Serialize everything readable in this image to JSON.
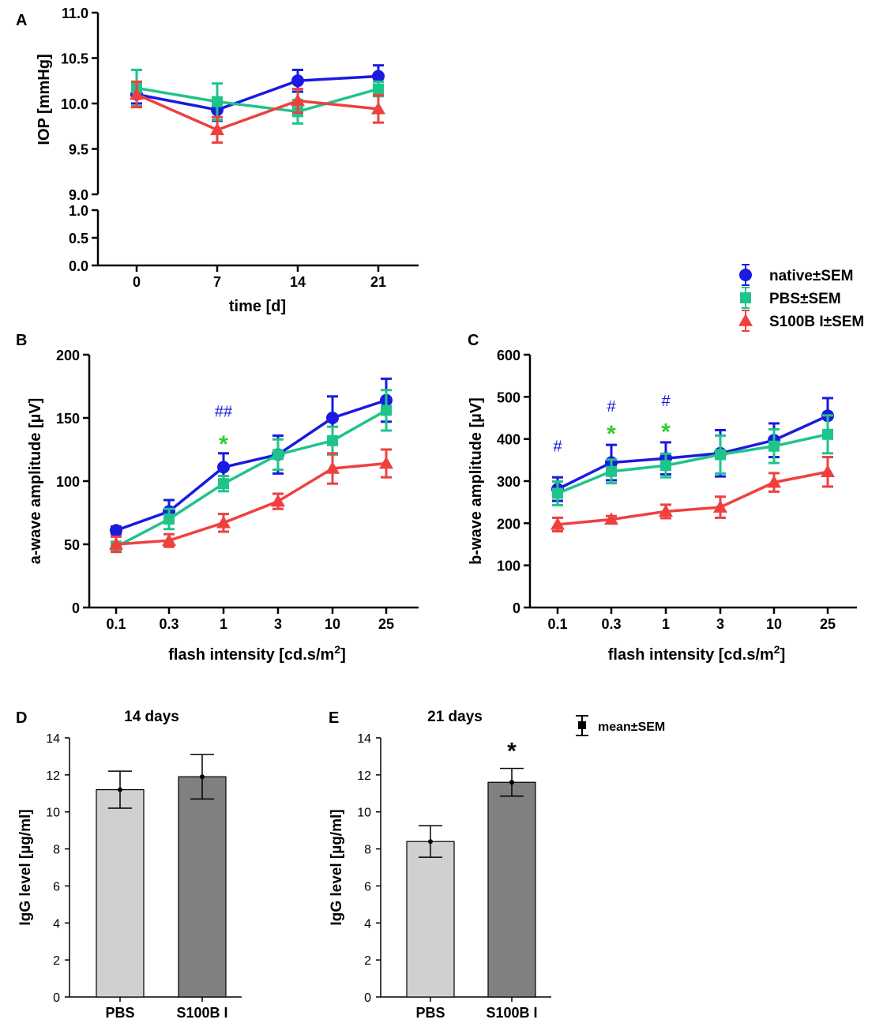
{
  "colors": {
    "native": "#1a1ae0",
    "pbs": "#1fc48a",
    "s100b": "#ef4040",
    "bar_pbs": "#d0d0d0",
    "bar_s100b": "#808080",
    "ink": "#000000",
    "star_green": "#33cc33",
    "hash_blue": "#1a1ae0"
  },
  "legend": {
    "native": "native±SEM",
    "pbs": "PBS±SEM",
    "s100b": "S100B I±SEM",
    "mean": "mean±SEM"
  },
  "chart_data": [
    {
      "panel": "A",
      "type": "line",
      "xlabel": "time [d]",
      "ylabel": "IOP [mmHg]",
      "categories": [
        "0",
        "7",
        "14",
        "21"
      ],
      "x": [
        0,
        7,
        14,
        21
      ],
      "ylim_upper": [
        9.0,
        11.0
      ],
      "yticks_upper": [
        "9.0",
        "9.5",
        "10.0",
        "10.5",
        "11.0"
      ],
      "ylim_lower": [
        0.0,
        1.0
      ],
      "yticks_lower": [
        "0.0",
        "0.5",
        "1.0"
      ],
      "series": [
        {
          "key": "native",
          "name": "native±SEM",
          "marker": "circle",
          "values": [
            10.1,
            9.93,
            10.25,
            10.3
          ],
          "err": [
            0.1,
            0.12,
            0.12,
            0.12
          ]
        },
        {
          "key": "pbs",
          "name": "PBS±SEM",
          "marker": "square",
          "values": [
            10.17,
            10.02,
            9.91,
            10.16
          ],
          "err": [
            0.2,
            0.2,
            0.13,
            0.08
          ]
        },
        {
          "key": "s100b",
          "name": "S100B I±SEM",
          "marker": "triangle",
          "values": [
            10.1,
            9.71,
            10.03,
            9.94
          ],
          "err": [
            0.14,
            0.14,
            0.13,
            0.15
          ]
        }
      ]
    },
    {
      "panel": "B",
      "type": "line",
      "xlabel": "flash intensity [cd.s/m",
      "xlabel_sup": "2",
      "xlabel_end": "]",
      "ylabel": "a-wave amplitude [µV]",
      "categories": [
        "0.1",
        "0.3",
        "1",
        "3",
        "10",
        "25"
      ],
      "ylim": [
        0,
        200
      ],
      "yticks": [
        "0",
        "50",
        "100",
        "150",
        "200"
      ],
      "series": [
        {
          "key": "native",
          "name": "native±SEM",
          "marker": "circle",
          "values": [
            61,
            76,
            111,
            121,
            150,
            164
          ],
          "err": [
            3,
            9,
            11,
            15,
            17,
            17
          ]
        },
        {
          "key": "pbs",
          "name": "PBS±SEM",
          "marker": "square",
          "values": [
            48,
            70,
            98,
            121,
            132,
            156
          ],
          "err": [
            4,
            8,
            6,
            12,
            11,
            16
          ]
        },
        {
          "key": "s100b",
          "name": "S100B I±SEM",
          "marker": "triangle",
          "values": [
            50,
            53,
            67,
            84,
            110,
            114
          ],
          "err": [
            6,
            5,
            7,
            6,
            12,
            11
          ]
        }
      ],
      "annotations": [
        {
          "cat": 2,
          "text": "##",
          "color": "hash_blue",
          "y": 151
        },
        {
          "cat": 2,
          "text": "*",
          "color": "star_green",
          "y": 132
        }
      ]
    },
    {
      "panel": "C",
      "type": "line",
      "xlabel": "flash intensity [cd.s/m",
      "xlabel_sup": "2",
      "xlabel_end": "]",
      "ylabel": "b-wave amplitude [µV]",
      "categories": [
        "0.1",
        "0.3",
        "1",
        "3",
        "10",
        "25"
      ],
      "ylim": [
        0,
        600
      ],
      "yticks": [
        "0",
        "100",
        "200",
        "300",
        "400",
        "500",
        "600"
      ],
      "series": [
        {
          "key": "native",
          "name": "native±SEM",
          "marker": "circle",
          "values": [
            281,
            344,
            354,
            366,
            397,
            455
          ],
          "err": [
            28,
            42,
            38,
            55,
            40,
            42
          ]
        },
        {
          "key": "pbs",
          "name": "PBS±SEM",
          "marker": "square",
          "values": [
            271,
            323,
            337,
            363,
            383,
            411
          ],
          "err": [
            28,
            28,
            28,
            45,
            40,
            45
          ]
        },
        {
          "key": "s100b",
          "name": "S100B I±SEM",
          "marker": "triangle",
          "values": [
            197,
            209,
            228,
            238,
            297,
            322
          ],
          "err": [
            16,
            8,
            16,
            25,
            22,
            35
          ]
        }
      ],
      "annotations": [
        {
          "cat": 0,
          "text": "#",
          "color": "hash_blue",
          "y": 370
        },
        {
          "cat": 1,
          "text": "#",
          "color": "hash_blue",
          "y": 465
        },
        {
          "cat": 1,
          "text": "*",
          "color": "star_green",
          "y": 420
        },
        {
          "cat": 2,
          "text": "#",
          "color": "hash_blue",
          "y": 478
        },
        {
          "cat": 2,
          "text": "*",
          "color": "star_green",
          "y": 425
        }
      ]
    },
    {
      "panel": "D",
      "type": "bar",
      "title": "14 days",
      "ylabel": "IgG level [µg/ml]",
      "categories": [
        "PBS",
        "S100B I"
      ],
      "values": [
        11.2,
        11.9
      ],
      "err": [
        1.0,
        1.2
      ],
      "ylim": [
        0,
        14
      ],
      "yticks": [
        "0",
        "2",
        "4",
        "6",
        "8",
        "10",
        "12",
        "14"
      ]
    },
    {
      "panel": "E",
      "type": "bar",
      "title": "21 days",
      "ylabel": "IgG level [µg/ml]",
      "categories": [
        "PBS",
        "S100B I"
      ],
      "values": [
        8.4,
        11.6
      ],
      "err": [
        0.85,
        0.75
      ],
      "ylim": [
        0,
        14
      ],
      "yticks": [
        "0",
        "2",
        "4",
        "6",
        "8",
        "10",
        "12",
        "14"
      ],
      "annotations": [
        {
          "cat": 1,
          "text": "*"
        }
      ]
    }
  ]
}
